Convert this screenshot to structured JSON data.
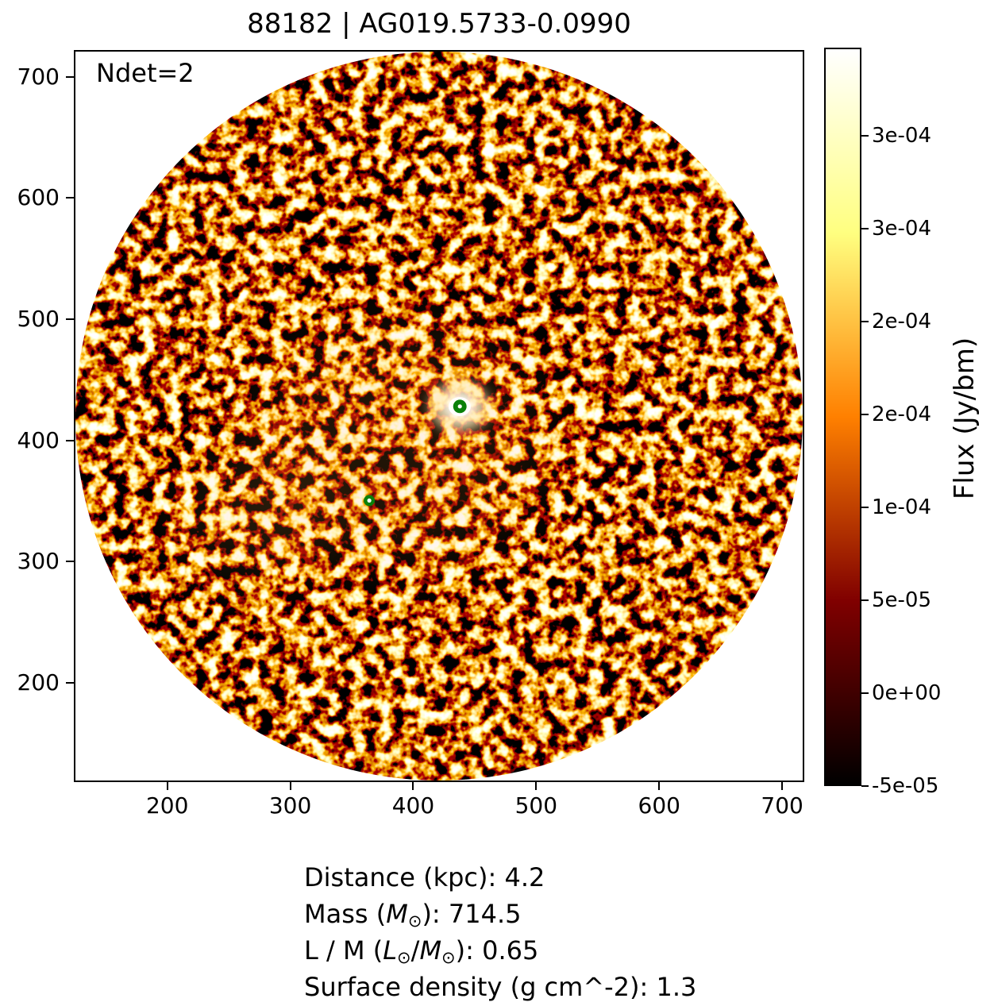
{
  "annotations": {
    "ndet": "Ndet=2",
    "info_lines": [
      [
        {
          "t": "Distance (kpc): 4.2"
        }
      ],
      [
        {
          "t": "Mass ("
        },
        {
          "t": "M",
          "style": "italic"
        },
        {
          "t": "⊙",
          "style": "sub"
        },
        {
          "t": "): 714.5"
        }
      ],
      [
        {
          "t": "L / M ("
        },
        {
          "t": "L",
          "style": "italic"
        },
        {
          "t": "⊙",
          "style": "sub"
        },
        {
          "t": "/"
        },
        {
          "t": "M",
          "style": "italic"
        },
        {
          "t": "⊙",
          "style": "sub"
        },
        {
          "t": "): 0.65"
        }
      ],
      [
        {
          "t": "Surface density (g cm^-2): 1.3"
        }
      ]
    ]
  },
  "colors": {
    "marker_green": "#0a800a",
    "marker_center": "#ffffff",
    "text": "#000000",
    "background": "#ffffff"
  },
  "chart_data": {
    "type": "heatmap",
    "title": "88182 | AG019.5733-0.0990",
    "xlabel": "",
    "ylabel": "",
    "xlim": [
      124,
      718
    ],
    "ylim": [
      118,
      722
    ],
    "x_ticks": [
      200,
      300,
      400,
      500,
      600,
      700
    ],
    "y_ticks": [
      200,
      300,
      400,
      500,
      600,
      700
    ],
    "grid": false,
    "colormap": "afmhot",
    "field_shape": "circular",
    "n_detections": 2,
    "detections": [
      {
        "x": 438,
        "y": 428,
        "r": 8.5
      },
      {
        "x": 364,
        "y": 350,
        "r": 7
      }
    ],
    "colorbar": {
      "label": "Flux (Jy/bm)",
      "vmin": -5e-05,
      "vmax": 0.0003475,
      "ticks": [
        {
          "value": 0.0003,
          "label": "3e-04"
        },
        {
          "value": 0.00025,
          "label": "3e-04"
        },
        {
          "value": 0.0002,
          "label": "2e-04"
        },
        {
          "value": 0.00015,
          "label": "2e-04"
        },
        {
          "value": 0.0001,
          "label": "1e-04"
        },
        {
          "value": 5e-05,
          "label": "5e-05"
        },
        {
          "value": 0,
          "label": "0e+00"
        },
        {
          "value": -5e-05,
          "label": "-5e-05"
        }
      ],
      "gradient_stops": [
        "#000000",
        "#800000",
        "#ff8000",
        "#ffff80",
        "#ffffff"
      ],
      "legend_position": "right"
    }
  }
}
